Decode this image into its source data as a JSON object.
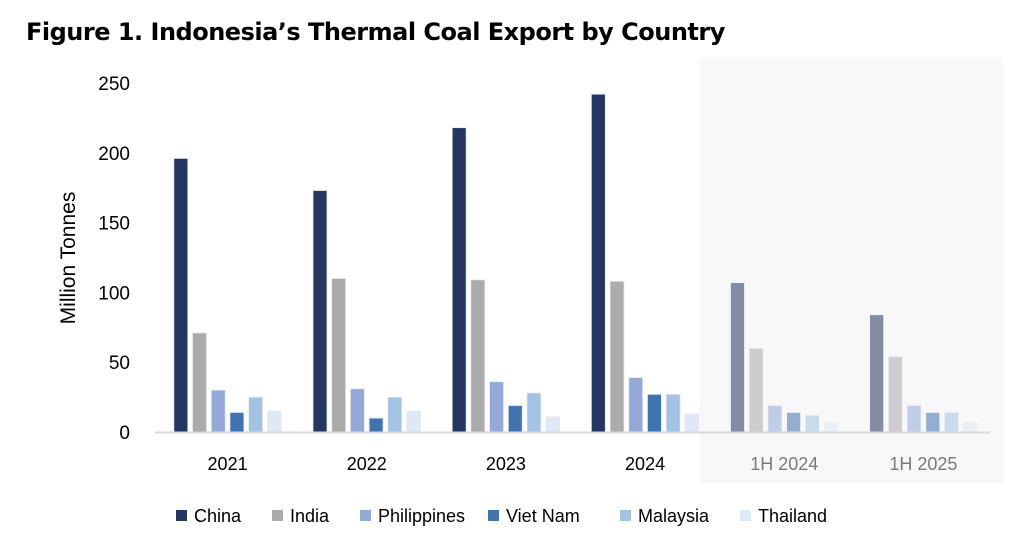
{
  "chart_data": {
    "type": "bar",
    "title": "Figure 1. Indonesia’s Thermal Coal Export by Country",
    "ylabel": "Million Tonnes",
    "xlabel": "",
    "ylim": [
      0,
      250
    ],
    "yticks": [
      0,
      50,
      100,
      150,
      200,
      250
    ],
    "grid": false,
    "legend_position": "bottom",
    "categories": [
      "2021",
      "2022",
      "2023",
      "2024",
      "1H 2024",
      "1H 2025"
    ],
    "highlighted_categories": [
      "1H 2024",
      "1H 2025"
    ],
    "series": [
      {
        "name": "China",
        "color": "#253760",
        "values": [
          196,
          173,
          218,
          242,
          107,
          84
        ]
      },
      {
        "name": "India",
        "color": "#ababab",
        "values": [
          71,
          110,
          109,
          108,
          60,
          54
        ]
      },
      {
        "name": "Philippines",
        "color": "#95a9d8",
        "values": [
          30,
          31,
          36,
          39,
          19,
          19
        ]
      },
      {
        "name": "Viet Nam",
        "color": "#4173b0",
        "values": [
          14,
          10,
          19,
          27,
          14,
          14
        ]
      },
      {
        "name": "Malaysia",
        "color": "#a4c2e4",
        "values": [
          25,
          25,
          28,
          27,
          12,
          14
        ]
      },
      {
        "name": "Thailand",
        "color": "#dfe8f5",
        "values": [
          15,
          15,
          11,
          13,
          7,
          7
        ]
      }
    ]
  }
}
